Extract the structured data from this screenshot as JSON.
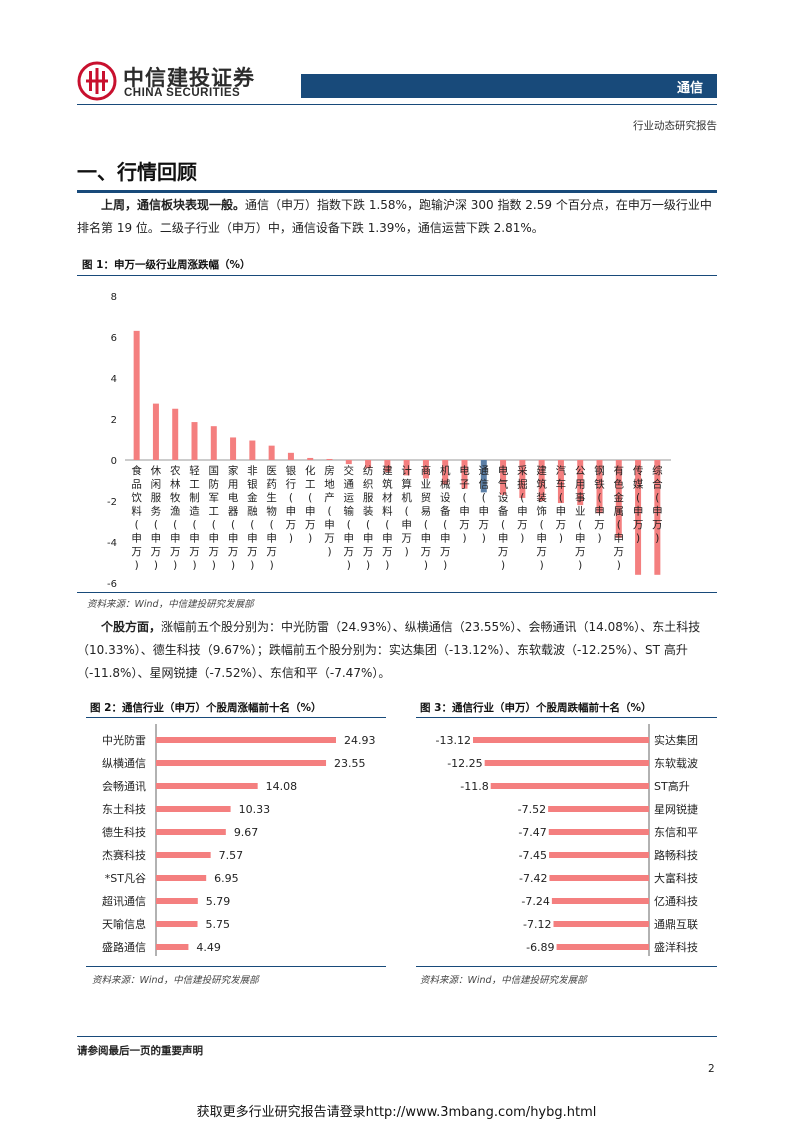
{
  "header": {
    "brand_cn": "中信建投证券",
    "brand_en": "CHINA SECURITIES",
    "industry": "通信",
    "report_type": "行业动态研究报告"
  },
  "section": {
    "title": "一、行情回顾"
  },
  "para1": {
    "lead": "上周，通信板块表现一般。",
    "text": "通信（申万）指数下跌 1.58%，跑输沪深 300 指数 2.59 个百分点，在申万一级行业中排名第 19 位。二级子行业（申万）中，通信设备下跌 1.39%，通信运营下跌 2.81%。"
  },
  "fig1": {
    "title": "图 1：申万一级行业周涨跌幅（%）",
    "source": "资料来源：Wind，中信建投研究发展部"
  },
  "para2": {
    "lead": "个股方面，",
    "text": "涨幅前五个股分别为：中光防雷（24.93%）、纵横通信（23.55%）、会畅通讯（14.08%）、东土科技（10.33%）、德生科技（9.67%）；跌幅前五个股分别为：实达集团（-13.12%）、东软载波（-12.25%）、ST 高升（-11.8%）、星网锐捷（-7.52%）、东信和平（-7.47%）。"
  },
  "fig2": {
    "title": "图 2：通信行业（申万）个股周涨幅前十名（%）",
    "source": "资料来源：Wind，中信建投研究发展部"
  },
  "fig3": {
    "title": "图 3：通信行业（申万）个股周跌幅前十名（%）",
    "source": "资料来源：Wind，中信建投研究发展部"
  },
  "footer": {
    "notice": "请参阅最后一页的重要声明",
    "page_number": "2",
    "promo": "获取更多行业研究报告请登录http://www.3mbang.com/hybg.html"
  },
  "colors": {
    "bar": "#f47f7f",
    "highlight_bar": "#5b7fa6",
    "brand_blue": "#184a7a",
    "logo_red": "#c8102e"
  },
  "chart_data": [
    {
      "type": "bar",
      "ylim": [
        -6,
        8
      ],
      "yticks": [
        -6,
        -4,
        -2,
        0,
        2,
        4,
        6,
        8
      ],
      "highlight": "通信(申万)",
      "categories": [
        "食品饮料(申万)",
        "休闲服务(申万)",
        "农林牧渔(申万)",
        "轻工制造(申万)",
        "国防军工(申万)",
        "家用电器(申万)",
        "非银金融(申万)",
        "医药生物(申万)",
        "银行(申万)",
        "化工(申万)",
        "房地产(申万)",
        "交通运输(申万)",
        "纺织服装(申万)",
        "建筑材料(申万)",
        "计算机(申万)",
        "商业贸易(申万)",
        "机械设备(申万)",
        "电子(申万)",
        "通信(申万)",
        "电气设备(申万)",
        "采掘(申万)",
        "建筑装饰(申万)",
        "汽车(申万)",
        "公用事业(申万)",
        "钢铁(申万)",
        "有色金属(申万)",
        "传媒(申万)",
        "综合(申万)"
      ],
      "values": [
        6.3,
        2.75,
        2.5,
        1.85,
        1.65,
        1.1,
        0.95,
        0.7,
        0.35,
        0.1,
        0.05,
        -0.2,
        -0.4,
        -0.6,
        -0.75,
        -0.9,
        -1.2,
        -1.4,
        -1.58,
        -1.7,
        -1.85,
        -2.0,
        -2.1,
        -2.2,
        -2.6,
        -3.8,
        -5.6,
        -5.6
      ]
    },
    {
      "type": "bar",
      "orientation": "horizontal",
      "categories": [
        "中光防雷",
        "纵横通信",
        "会畅通讯",
        "东土科技",
        "德生科技",
        "杰赛科技",
        "*ST凡谷",
        "超讯通信",
        "天喻信息",
        "盛路通信"
      ],
      "values": [
        24.93,
        23.55,
        14.08,
        10.33,
        9.67,
        7.57,
        6.95,
        5.79,
        5.75,
        4.49
      ],
      "labels": [
        "24.93",
        "23.55",
        "14.08",
        "10.33",
        "9.67",
        "7.57",
        "6.95",
        "5.79",
        "5.75",
        "4.49"
      ]
    },
    {
      "type": "bar",
      "orientation": "horizontal",
      "categories": [
        "实达集团",
        "东软载波",
        "ST高升",
        "星网锐捷",
        "东信和平",
        "路畅科技",
        "大富科技",
        "亿通科技",
        "通鼎互联",
        "盛洋科技"
      ],
      "values": [
        -13.12,
        -12.25,
        -11.8,
        -7.52,
        -7.47,
        -7.45,
        -7.42,
        -7.24,
        -7.12,
        -6.89
      ],
      "labels": [
        "-13.12",
        "-12.25",
        "-11.8",
        "-7.52",
        "-7.47",
        "-7.45",
        "-7.42",
        "-7.24",
        "-7.12",
        "-6.89"
      ]
    }
  ]
}
